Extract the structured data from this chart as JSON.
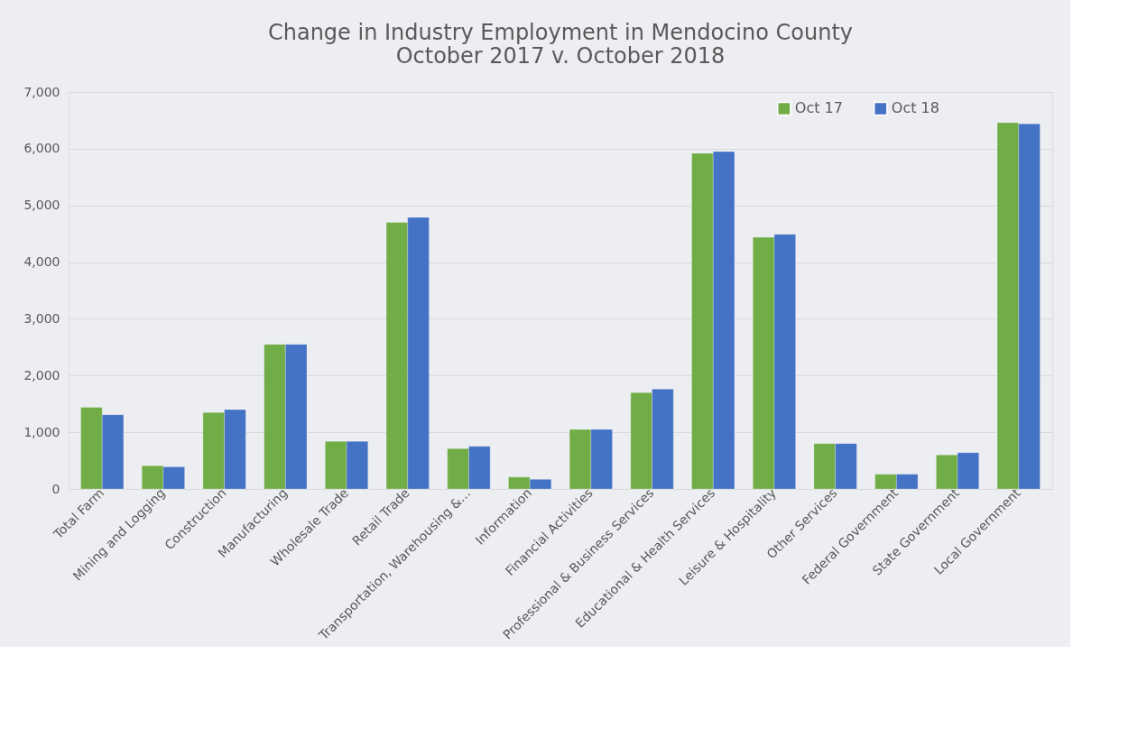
{
  "chart_data": {
    "type": "bar",
    "title": [
      "Change in Industry Employment  in Mendocino County",
      "October 2017 v. October 2018"
    ],
    "categories": [
      "Total Farm",
      "Mining and Logging",
      "Construction",
      "Manufacturing",
      "Wholesale Trade",
      "Retail Trade",
      "Transportation, Warehousing &…",
      "Information",
      "Financial Activities",
      "Professional & Business Services",
      "Educational & Health Services",
      "Leisure & Hospitality",
      "Other Services",
      "Federal Government",
      "State Government",
      "Local Government"
    ],
    "series": [
      {
        "name": "Oct 17",
        "color": "#70ad47",
        "values": [
          1440,
          410,
          1350,
          2550,
          840,
          4700,
          710,
          210,
          1050,
          1700,
          5920,
          4440,
          800,
          260,
          600,
          6460
        ]
      },
      {
        "name": "Oct 18",
        "color": "#4472c4",
        "values": [
          1310,
          390,
          1400,
          2550,
          840,
          4790,
          750,
          170,
          1050,
          1760,
          5950,
          4490,
          800,
          260,
          640,
          6440
        ]
      }
    ],
    "ylim": [
      0,
      7000
    ],
    "yticks": [
      0,
      {
        "value": 1000,
        "label": "1,000"
      },
      {
        "value": 2000,
        "label": "2,000"
      },
      {
        "value": 3000,
        "label": "3,000"
      },
      {
        "value": 4000,
        "label": "4,000"
      },
      {
        "value": 5000,
        "label": "5,000"
      },
      {
        "value": 6000,
        "label": "6,000"
      },
      {
        "value": 7000,
        "label": "7,000"
      }
    ],
    "grid": "y",
    "legend": "top right"
  }
}
